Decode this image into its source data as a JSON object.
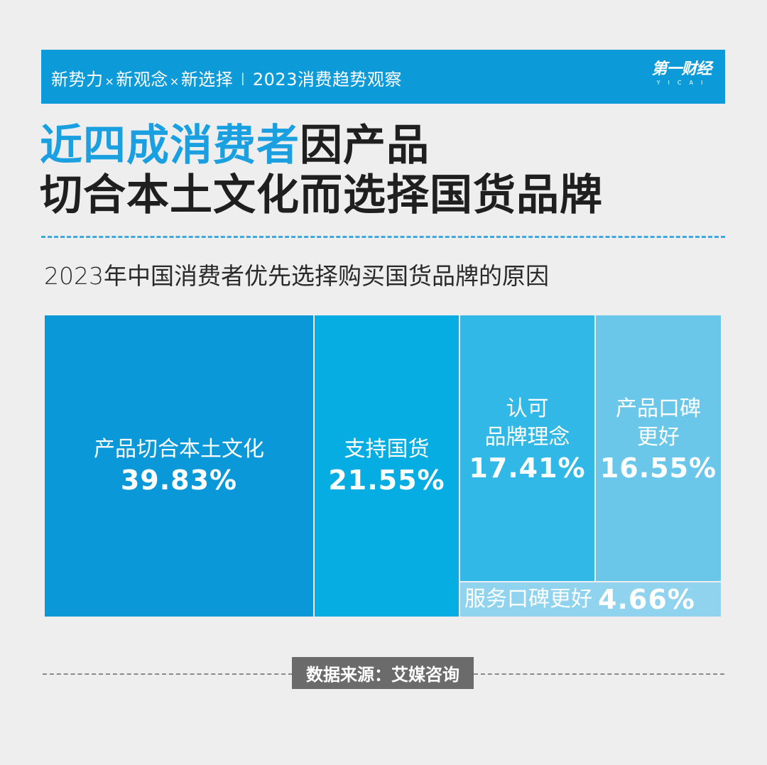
{
  "header": {
    "series_parts": [
      "新势力",
      "新观念",
      "新选择"
    ],
    "separator_glyph": "×",
    "divider": "I",
    "column_title": "2023消费趋势观察",
    "logo_main": "第一财经",
    "logo_sub": "YICAI"
  },
  "title": {
    "highlight": "近四成消费者",
    "line1_rest": "因产品",
    "line2": "切合本土文化而选择国货品牌"
  },
  "subtitle": "2023年中国消费者优先选择购买国货品牌的原因",
  "colors": {
    "accent": "#0d9ad9",
    "title_highlight": "#1aa0e0",
    "cell1": "#0a98d9",
    "cell2": "#05ade2",
    "cell3": "#31b8e6",
    "cell4": "#6ac7ea",
    "cell5": "#8fd3ef"
  },
  "chart_data": {
    "type": "treemap",
    "title": "2023年中国消费者优先选择购买国货品牌的原因",
    "categories": [
      "产品切合本土文化",
      "支持国货",
      "认可品牌理念",
      "产品口碑更好",
      "服务口碑更好"
    ],
    "values": [
      39.83,
      21.55,
      17.41,
      16.55,
      4.66
    ],
    "unit": "%",
    "cells": [
      {
        "label": "产品切合本土文化",
        "label_lines": [
          "产品切合本土文化"
        ],
        "value": "39.83%"
      },
      {
        "label": "支持国货",
        "label_lines": [
          "支持国货"
        ],
        "value": "21.55%"
      },
      {
        "label": "认可品牌理念",
        "label_lines": [
          "认可",
          "品牌理念"
        ],
        "value": "17.41%"
      },
      {
        "label": "产品口碑更好",
        "label_lines": [
          "产品口碑",
          "更好"
        ],
        "value": "16.55%"
      },
      {
        "label": "服务口碑更好",
        "label_lines": [
          "服务口碑更好"
        ],
        "value": "4.66%"
      }
    ],
    "source": "数据来源：艾媒咨询"
  },
  "footer": {
    "source": "数据来源：艾媒咨询"
  }
}
